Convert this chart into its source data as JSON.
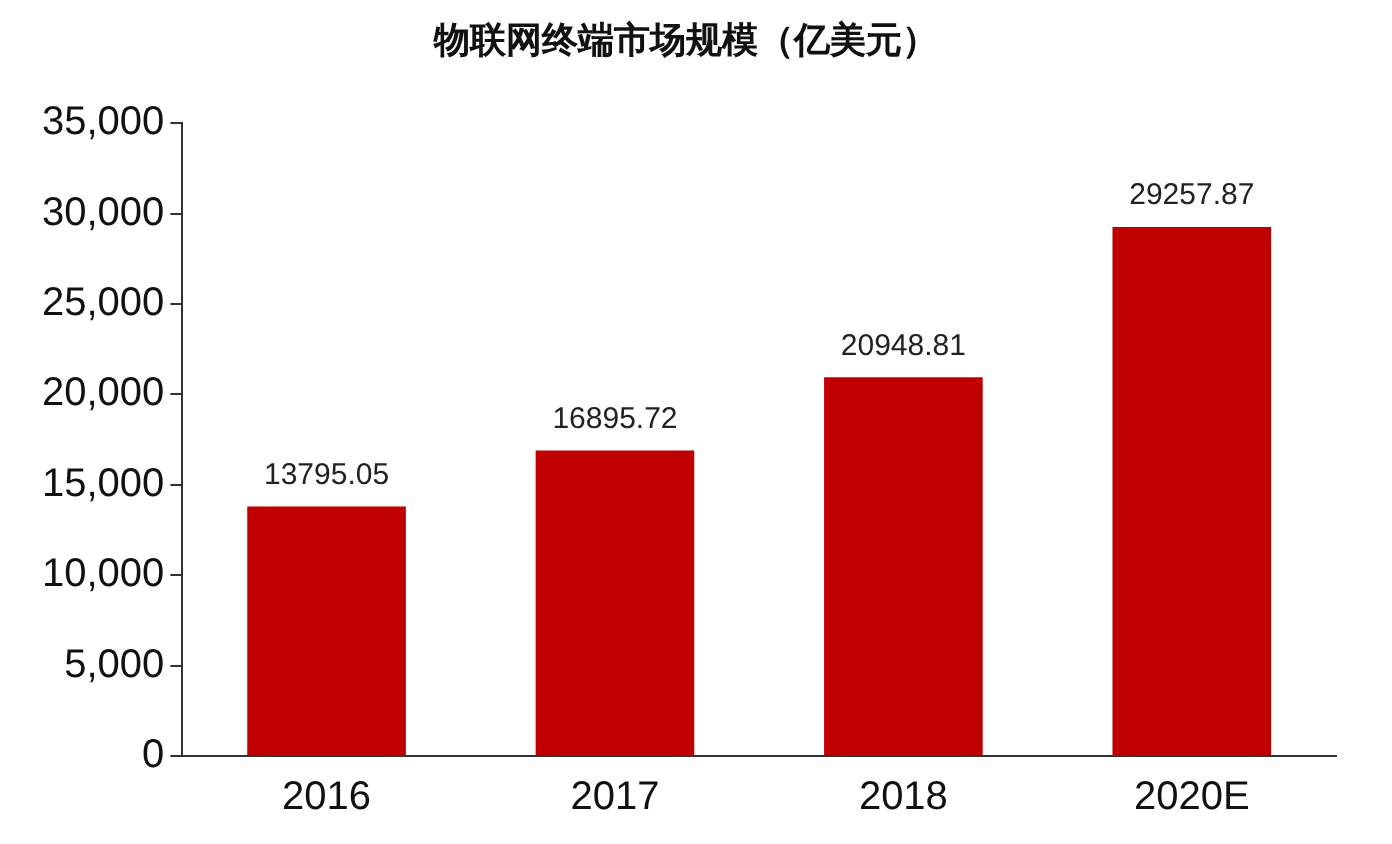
{
  "chart_data": {
    "type": "bar",
    "title": "物联网终端市场规模（亿美元）",
    "categories": [
      "2016",
      "2017",
      "2018",
      "2020E"
    ],
    "values": [
      13795.05,
      16895.72,
      20948.81,
      29257.87
    ],
    "color": "#c00000",
    "ylim": [
      0,
      35000
    ],
    "yticks": [
      0,
      {
        "value": 5000,
        "label": "5,000"
      },
      {
        "value": 10000,
        "label": "10,000"
      },
      {
        "value": 15000,
        "label": "15,000"
      },
      {
        "value": 20000,
        "label": "20,000"
      },
      {
        "value": 25000,
        "label": "25,000"
      },
      {
        "value": 30000,
        "label": "30,000"
      },
      {
        "value": 35000,
        "label": "35,000"
      }
    ],
    "grid": false,
    "data_labels": true
  }
}
